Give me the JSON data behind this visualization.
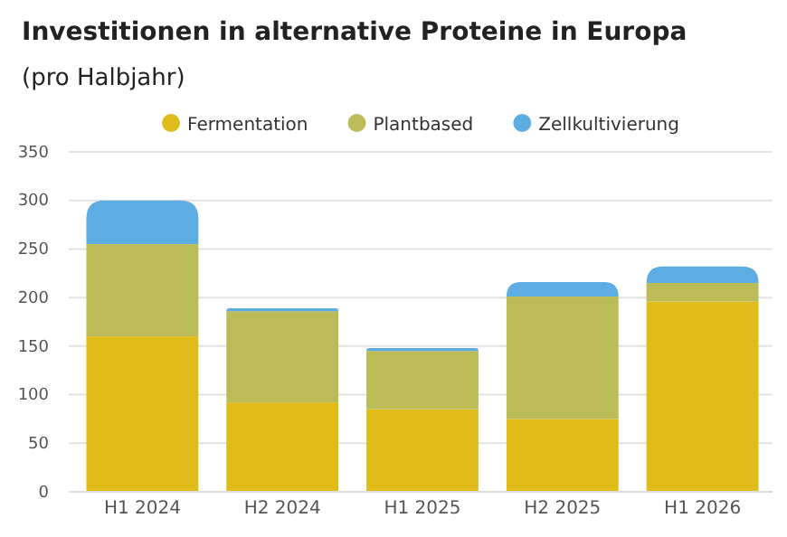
{
  "chart_data": {
    "type": "bar",
    "title": "Investitionen in alternative Proteine in Europa",
    "subtitle": "(pro Halbjahr)",
    "categories": [
      "H1 2024",
      "H2 2024",
      "H1 2025",
      "H2 2025",
      "H1 2026"
    ],
    "series": [
      {
        "name": "Fermentation",
        "color": "#e0bc1a",
        "values": [
          160,
          92,
          85,
          75,
          196
        ]
      },
      {
        "name": "Plantbased",
        "color": "#bbbc58",
        "values": [
          95,
          94,
          60,
          126,
          19
        ]
      },
      {
        "name": "Zellkultivierung",
        "color": "#5dade2",
        "values": [
          45,
          3,
          3,
          15,
          17
        ]
      }
    ],
    "stacked": true,
    "ylim": [
      0,
      350
    ],
    "yticks": [
      0,
      50,
      100,
      150,
      200,
      250,
      300,
      350
    ],
    "grid": "y",
    "legend": "top"
  }
}
